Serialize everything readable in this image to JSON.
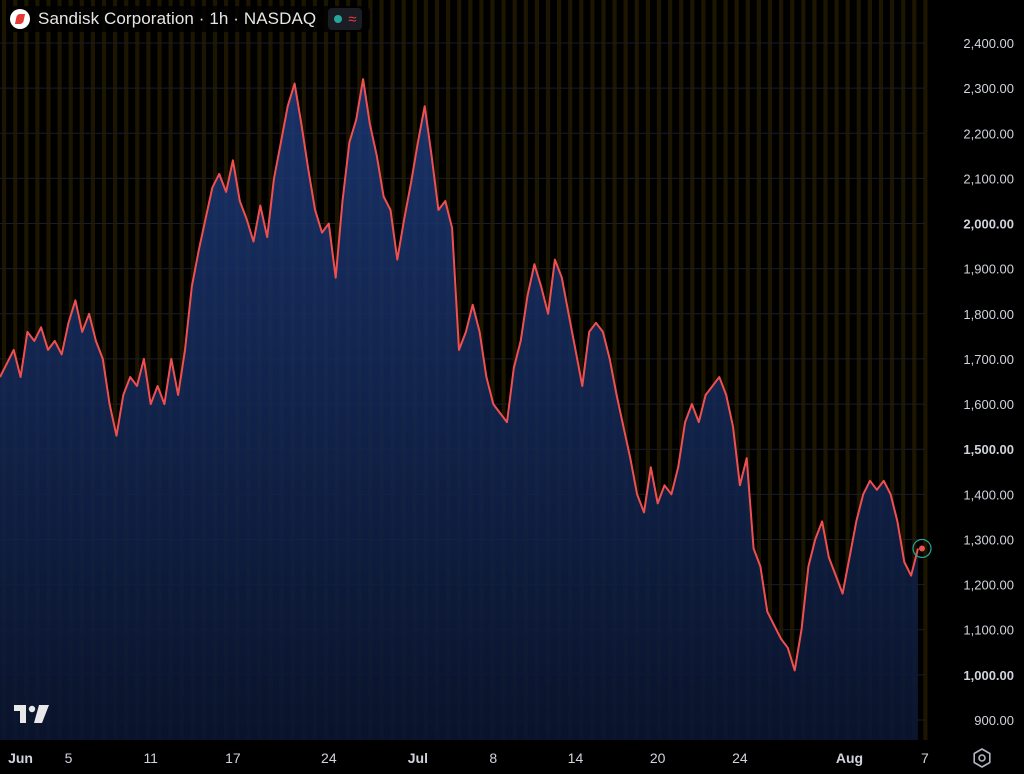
{
  "header": {
    "symbol_title": "Sandisk Corporation · 1h · NASDAQ",
    "status_dot_color": "#26a69a",
    "wave_icon": "≈"
  },
  "colors": {
    "background": "#000000",
    "line": "#f04f4f",
    "area_top": "#1c3a7a",
    "area_bottom": "#0a1530",
    "session_stripe": "#1c1500",
    "grid": "#1a1d26"
  },
  "chart_data": {
    "type": "area",
    "title": "",
    "xlabel": "",
    "ylabel": "",
    "ylim": [
      840,
      2450
    ],
    "grid": true,
    "y_ticks": [
      {
        "value": 2400,
        "label": "2,400.00",
        "bold": false
      },
      {
        "value": 2300,
        "label": "2,300.00",
        "bold": false
      },
      {
        "value": 2200,
        "label": "2,200.00",
        "bold": false
      },
      {
        "value": 2100,
        "label": "2,100.00",
        "bold": false
      },
      {
        "value": 2000,
        "label": "2,000.00",
        "bold": true
      },
      {
        "value": 1900,
        "label": "1,900.00",
        "bold": false
      },
      {
        "value": 1800,
        "label": "1,800.00",
        "bold": false
      },
      {
        "value": 1700,
        "label": "1,700.00",
        "bold": false
      },
      {
        "value": 1600,
        "label": "1,600.00",
        "bold": false
      },
      {
        "value": 1500,
        "label": "1,500.00",
        "bold": true
      },
      {
        "value": 1400,
        "label": "1,400.00",
        "bold": false
      },
      {
        "value": 1300,
        "label": "1,300.00",
        "bold": false
      },
      {
        "value": 1200,
        "label": "1,200.00",
        "bold": false
      },
      {
        "value": 1100,
        "label": "1,100.00",
        "bold": false
      },
      {
        "value": 1000,
        "label": "1,000.00",
        "bold": true
      },
      {
        "value": 900,
        "label": "900.00",
        "bold": false
      }
    ],
    "x_ticks": [
      {
        "t": 1.5,
        "label": "Jun",
        "bold": true
      },
      {
        "t": 5,
        "label": "5",
        "bold": false
      },
      {
        "t": 11,
        "label": "11",
        "bold": false
      },
      {
        "t": 17,
        "label": "17",
        "bold": false
      },
      {
        "t": 24,
        "label": "24",
        "bold": false
      },
      {
        "t": 30.5,
        "label": "Jul",
        "bold": true
      },
      {
        "t": 36,
        "label": "8",
        "bold": false
      },
      {
        "t": 42,
        "label": "14",
        "bold": false
      },
      {
        "t": 48,
        "label": "20",
        "bold": false
      },
      {
        "t": 54,
        "label": "24",
        "bold": false
      },
      {
        "t": 62,
        "label": "Aug",
        "bold": true
      },
      {
        "t": 67.5,
        "label": "7",
        "bold": false
      }
    ],
    "series": [
      {
        "values": [
          [
            0,
            1660
          ],
          [
            0.5,
            1690
          ],
          [
            1,
            1720
          ],
          [
            1.5,
            1660
          ],
          [
            2,
            1760
          ],
          [
            2.5,
            1740
          ],
          [
            3,
            1770
          ],
          [
            3.5,
            1720
          ],
          [
            4,
            1740
          ],
          [
            4.5,
            1710
          ],
          [
            5,
            1780
          ],
          [
            5.5,
            1830
          ],
          [
            6,
            1760
          ],
          [
            6.5,
            1800
          ],
          [
            7,
            1740
          ],
          [
            7.5,
            1700
          ],
          [
            8,
            1600
          ],
          [
            8.5,
            1530
          ],
          [
            9,
            1620
          ],
          [
            9.5,
            1660
          ],
          [
            10,
            1640
          ],
          [
            10.5,
            1700
          ],
          [
            11,
            1600
          ],
          [
            11.5,
            1640
          ],
          [
            12,
            1600
          ],
          [
            12.5,
            1700
          ],
          [
            13,
            1620
          ],
          [
            13.5,
            1720
          ],
          [
            14,
            1860
          ],
          [
            14.5,
            1940
          ],
          [
            15,
            2010
          ],
          [
            15.5,
            2080
          ],
          [
            16,
            2110
          ],
          [
            16.5,
            2070
          ],
          [
            17,
            2140
          ],
          [
            17.5,
            2050
          ],
          [
            18,
            2010
          ],
          [
            18.5,
            1960
          ],
          [
            19,
            2040
          ],
          [
            19.5,
            1970
          ],
          [
            20,
            2100
          ],
          [
            20.5,
            2180
          ],
          [
            21,
            2260
          ],
          [
            21.5,
            2310
          ],
          [
            22,
            2220
          ],
          [
            22.5,
            2120
          ],
          [
            23,
            2030
          ],
          [
            23.5,
            1980
          ],
          [
            24,
            2000
          ],
          [
            24.5,
            1880
          ],
          [
            25,
            2050
          ],
          [
            25.5,
            2180
          ],
          [
            26,
            2230
          ],
          [
            26.5,
            2320
          ],
          [
            27,
            2220
          ],
          [
            27.5,
            2150
          ],
          [
            28,
            2060
          ],
          [
            28.5,
            2030
          ],
          [
            29,
            1920
          ],
          [
            29.5,
            2010
          ],
          [
            30,
            2090
          ],
          [
            30.5,
            2180
          ],
          [
            31,
            2260
          ],
          [
            31.5,
            2150
          ],
          [
            32,
            2030
          ],
          [
            32.5,
            2050
          ],
          [
            33,
            1990
          ],
          [
            33.5,
            1720
          ],
          [
            34,
            1760
          ],
          [
            34.5,
            1820
          ],
          [
            35,
            1760
          ],
          [
            35.5,
            1660
          ],
          [
            36,
            1600
          ],
          [
            36.5,
            1580
          ],
          [
            37,
            1560
          ],
          [
            37.5,
            1680
          ],
          [
            38,
            1740
          ],
          [
            38.5,
            1840
          ],
          [
            39,
            1910
          ],
          [
            39.5,
            1860
          ],
          [
            40,
            1800
          ],
          [
            40.5,
            1920
          ],
          [
            41,
            1880
          ],
          [
            41.5,
            1800
          ],
          [
            42,
            1720
          ],
          [
            42.5,
            1640
          ],
          [
            43,
            1760
          ],
          [
            43.5,
            1780
          ],
          [
            44,
            1760
          ],
          [
            44.5,
            1700
          ],
          [
            45,
            1620
          ],
          [
            45.5,
            1550
          ],
          [
            46,
            1480
          ],
          [
            46.5,
            1400
          ],
          [
            47,
            1360
          ],
          [
            47.5,
            1460
          ],
          [
            48,
            1380
          ],
          [
            48.5,
            1420
          ],
          [
            49,
            1400
          ],
          [
            49.5,
            1460
          ],
          [
            50,
            1560
          ],
          [
            50.5,
            1600
          ],
          [
            51,
            1560
          ],
          [
            51.5,
            1620
          ],
          [
            52,
            1640
          ],
          [
            52.5,
            1660
          ],
          [
            53,
            1620
          ],
          [
            53.5,
            1550
          ],
          [
            54,
            1420
          ],
          [
            54.5,
            1480
          ],
          [
            55,
            1280
          ],
          [
            55.5,
            1240
          ],
          [
            56,
            1140
          ],
          [
            56.5,
            1110
          ],
          [
            57,
            1080
          ],
          [
            57.5,
            1060
          ],
          [
            58,
            1010
          ],
          [
            58.5,
            1100
          ],
          [
            59,
            1240
          ],
          [
            59.5,
            1300
          ],
          [
            60,
            1340
          ],
          [
            60.5,
            1260
          ],
          [
            61,
            1220
          ],
          [
            61.5,
            1180
          ],
          [
            62,
            1260
          ],
          [
            62.5,
            1340
          ],
          [
            63,
            1400
          ],
          [
            63.5,
            1430
          ],
          [
            64,
            1410
          ],
          [
            64.5,
            1430
          ],
          [
            65,
            1400
          ],
          [
            65.5,
            1340
          ],
          [
            66,
            1250
          ],
          [
            66.5,
            1220
          ],
          [
            67,
            1280
          ]
        ]
      }
    ],
    "last_value": 1280
  }
}
